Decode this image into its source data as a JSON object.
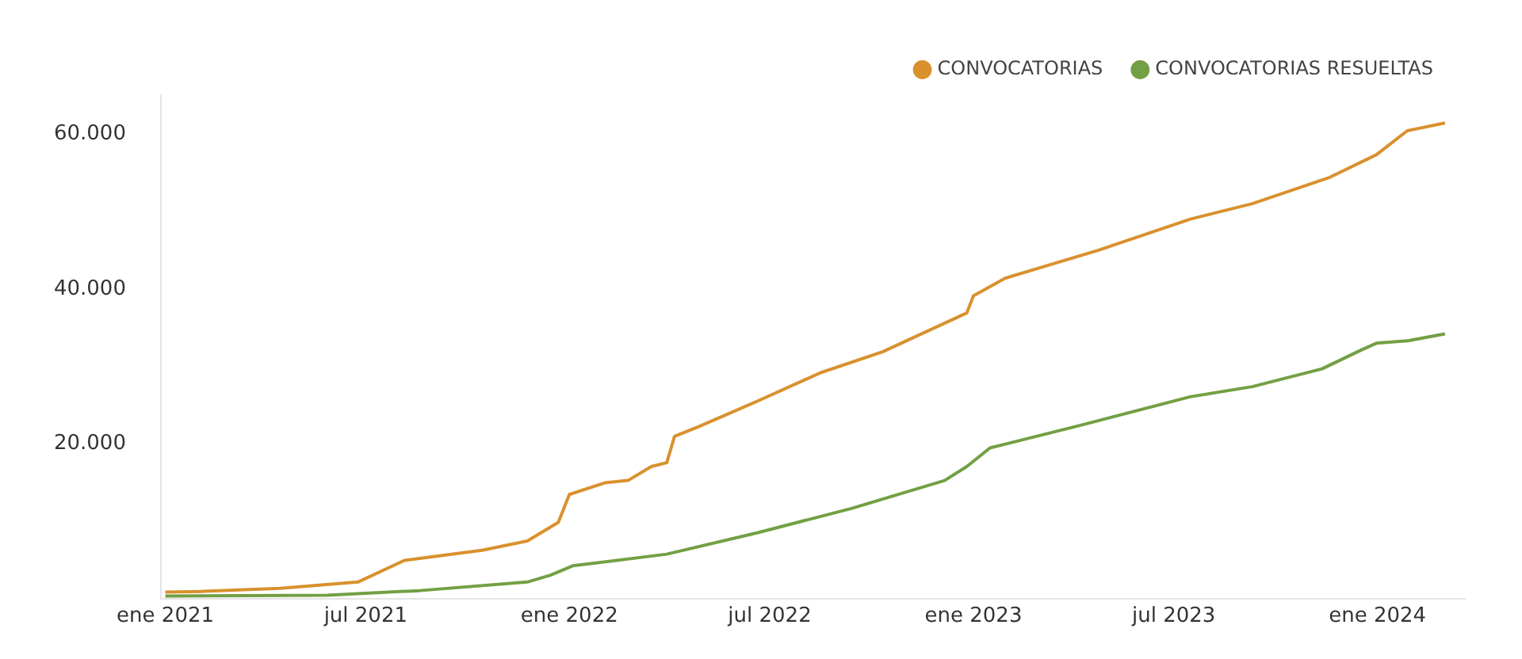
{
  "chart_data": {
    "type": "line",
    "legend": "top right",
    "grid": false,
    "marker": "none",
    "line_style": "solid",
    "xlim": [
      "2020-12-28",
      "2024-03-20"
    ],
    "xticks": [
      {
        "value": "2021-01-01",
        "label": "ene 2021"
      },
      {
        "value": "2021-07-01",
        "label": "jul 2021"
      },
      {
        "value": "2022-01-01",
        "label": "ene 2022"
      },
      {
        "value": "2022-07-01",
        "label": "jul 2022"
      },
      {
        "value": "2023-01-01",
        "label": "ene 2023"
      },
      {
        "value": "2023-07-01",
        "label": "jul 2023"
      },
      {
        "value": "2024-01-01",
        "label": "ene 2024"
      }
    ],
    "ylim": [
      0,
      65000
    ],
    "yticks": [
      {
        "value": 20000,
        "label": "20.000"
      },
      {
        "value": 40000,
        "label": "40.000"
      },
      {
        "value": 60000,
        "label": "60.000"
      }
    ],
    "series": [
      {
        "name": "CONVOCATORIAS",
        "color": "#d9912e",
        "x": [
          "2021-01-01",
          "2021-02-05",
          "2021-04-15",
          "2021-06-24",
          "2021-08-05",
          "2021-10-14",
          "2021-11-24",
          "2021-12-22",
          "2022-01-01",
          "2022-02-02",
          "2022-02-23",
          "2022-03-16",
          "2022-03-30",
          "2022-04-06",
          "2022-04-27",
          "2022-06-21",
          "2022-08-16",
          "2022-10-11",
          "2022-12-26",
          "2023-01-01",
          "2023-01-30",
          "2023-04-24",
          "2023-07-16",
          "2023-09-10",
          "2023-11-19",
          "2023-12-31",
          "2024-01-28",
          "2024-03-02"
        ],
        "values": [
          900,
          1000,
          1400,
          2200,
          5000,
          6300,
          7500,
          9900,
          13500,
          15000,
          15300,
          17100,
          17600,
          21000,
          22200,
          25600,
          29200,
          31900,
          36900,
          39100,
          41400,
          45000,
          49000,
          51000,
          54400,
          57300,
          60400,
          61400
        ]
      },
      {
        "name": "CONVOCATORIAS RESUELTAS",
        "color": "#72a044",
        "x": [
          "2021-01-01",
          "2021-05-27",
          "2021-08-19",
          "2021-11-24",
          "2021-12-15",
          "2022-01-04",
          "2022-03-30",
          "2022-06-21",
          "2022-09-13",
          "2022-12-06",
          "2022-12-26",
          "2023-01-16",
          "2023-04-10",
          "2023-07-16",
          "2023-09-10",
          "2023-11-12",
          "2023-12-17",
          "2023-12-31",
          "2024-01-28",
          "2024-03-02"
        ],
        "values": [
          400,
          500,
          1100,
          2200,
          3100,
          4300,
          5800,
          8600,
          11700,
          15300,
          17100,
          19500,
          22500,
          26100,
          27400,
          29700,
          32100,
          33000,
          33300,
          34200
        ]
      }
    ]
  }
}
